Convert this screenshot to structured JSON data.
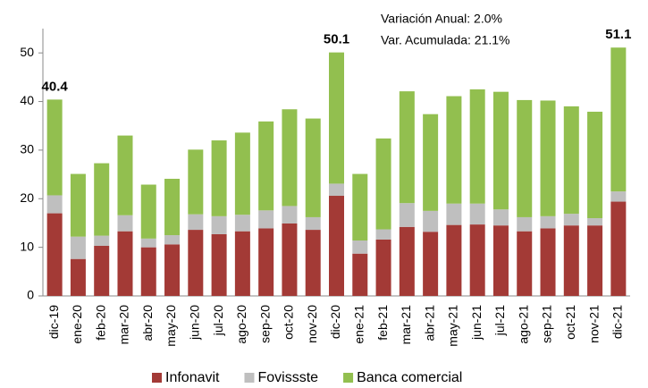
{
  "chart_data": {
    "type": "stacked_bar",
    "categories": [
      "dic-19",
      "ene-20",
      "feb-20",
      "mar-20",
      "abr-20",
      "may-20",
      "jun-20",
      "jul-20",
      "ago-20",
      "sep-20",
      "oct-20",
      "nov-20",
      "dic-20",
      "ene-21",
      "feb-21",
      "mar-21",
      "abr-21",
      "may-21",
      "jun-21",
      "jul-21",
      "ago-21",
      "sep-21",
      "oct-21",
      "nov-21",
      "dic-21"
    ],
    "series": [
      {
        "name": "Infonavit",
        "color": "#a33a36",
        "values": [
          17.0,
          7.6,
          10.3,
          13.3,
          10.0,
          10.6,
          13.6,
          12.7,
          13.3,
          13.9,
          14.9,
          13.6,
          20.6,
          8.7,
          11.6,
          14.2,
          13.2,
          14.6,
          14.7,
          14.5,
          13.3,
          13.9,
          14.5,
          14.5,
          19.4
        ]
      },
      {
        "name": "Fovissste",
        "color": "#bfbfbf",
        "values": [
          3.7,
          4.6,
          2.1,
          3.3,
          1.8,
          1.9,
          3.2,
          3.7,
          3.4,
          3.7,
          3.6,
          2.6,
          2.5,
          2.7,
          2.1,
          4.9,
          4.3,
          4.4,
          4.3,
          3.3,
          2.9,
          2.5,
          2.4,
          1.5,
          2.1
        ]
      },
      {
        "name": "Banca comercial",
        "color": "#92bf4f",
        "values": [
          19.7,
          12.9,
          14.9,
          16.4,
          11.1,
          11.6,
          13.3,
          15.6,
          16.9,
          18.3,
          19.9,
          20.3,
          27.0,
          13.7,
          18.7,
          23.0,
          19.9,
          22.1,
          23.5,
          24.2,
          24.1,
          23.8,
          22.1,
          21.9,
          29.6
        ]
      }
    ],
    "data_labels": [
      {
        "category": "dic-19",
        "value": 40.4
      },
      {
        "category": "dic-20",
        "value": 50.1
      },
      {
        "category": "dic-21",
        "value": 51.1
      }
    ],
    "annotations": [
      "Variación Anual: 2.0%",
      "Var. Acumulada: 21.1%"
    ],
    "ylim": [
      0,
      55
    ],
    "yticks": [
      0,
      10,
      20,
      30,
      40,
      50
    ],
    "grid": false,
    "legend": "bottom"
  }
}
